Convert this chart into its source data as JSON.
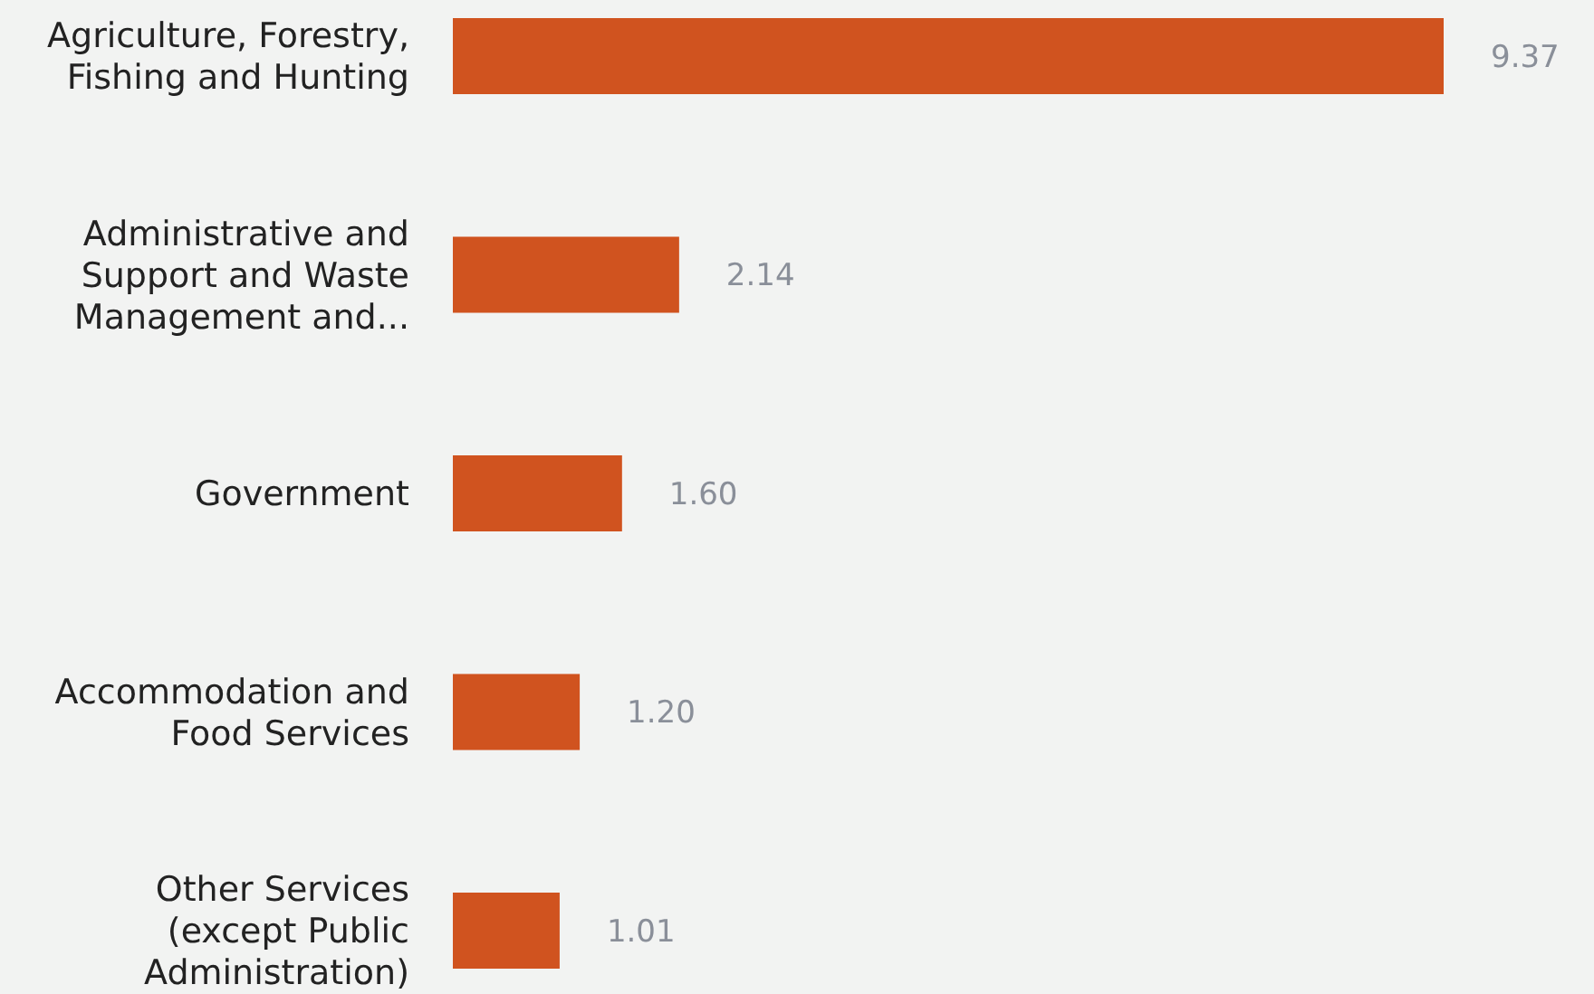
{
  "chart_data": {
    "type": "bar",
    "orientation": "horizontal",
    "data_labels": true,
    "categories": [
      "Agriculture, Forestry, Fishing and Hunting",
      "Administrative and Support and Waste Management and...",
      "Government",
      "Accommodation and Food Services",
      "Other Services (except Public Administration)"
    ],
    "values": [
      9.37,
      2.14,
      1.6,
      1.2,
      1.01
    ],
    "value_labels": [
      "9.37",
      "2.14",
      "1.60",
      "1.20",
      "1.01"
    ],
    "color": "#d0531f",
    "xlim": [
      0,
      9.37
    ],
    "tick_labels": "y"
  }
}
